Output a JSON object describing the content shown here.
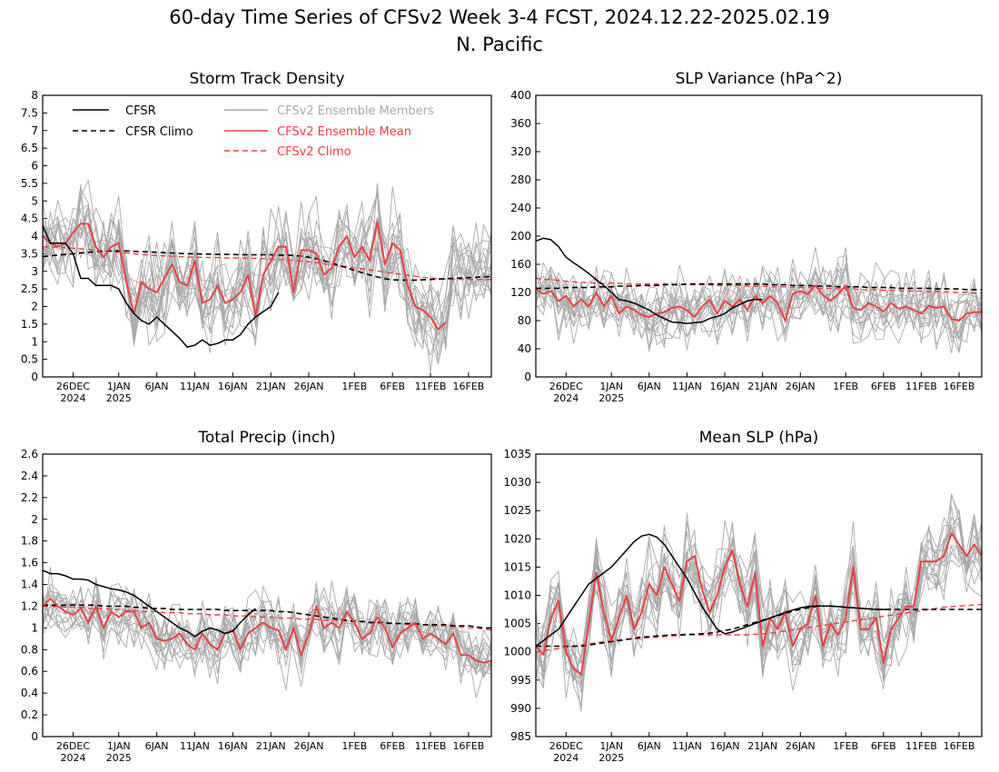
{
  "title_line1": "60-day Time Series of CFSv2 Week 3-4 FCST, 2024.12.22-2025.02.19",
  "title_line2": "N. Pacific",
  "x_ticks": [
    {
      "day": 4,
      "l1": "26DEC",
      "l2": "2024"
    },
    {
      "day": 10,
      "l1": "1JAN",
      "l2": "2025"
    },
    {
      "day": 15,
      "l1": "6JAN",
      "l2": ""
    },
    {
      "day": 20,
      "l1": "11JAN",
      "l2": ""
    },
    {
      "day": 25,
      "l1": "16JAN",
      "l2": ""
    },
    {
      "day": 30,
      "l1": "21JAN",
      "l2": ""
    },
    {
      "day": 35,
      "l1": "26JAN",
      "l2": ""
    },
    {
      "day": 41,
      "l1": "1FEB",
      "l2": ""
    },
    {
      "day": 46,
      "l1": "6FEB",
      "l2": ""
    },
    {
      "day": 51,
      "l1": "11FEB",
      "l2": ""
    },
    {
      "day": 56,
      "l1": "16FEB",
      "l2": ""
    }
  ],
  "legend": {
    "cfsr": "CFSR",
    "cfsr_climo": "CFSR Climo",
    "members": "CFSv2 Ensemble Members",
    "ens_mean": "CFSv2 Ensemble Mean",
    "cfsv2_climo": "CFSv2 Climo"
  },
  "colors": {
    "cfsr": "#000000",
    "members": "#a9a9a9",
    "ens_mean": "#f04040",
    "cfsv2_climo": "#f04040"
  },
  "chart_data": [
    {
      "type": "line",
      "title": "Storm Track Density",
      "x": "day index 0-59, 2024-12-22 to 2025-02-19",
      "ylim": [
        0,
        8
      ],
      "yticks": [
        "0",
        "0.5",
        "1",
        "1.5",
        "2",
        "2.5",
        "3",
        "3.5",
        "4",
        "4.5",
        "5",
        "5.5",
        "6",
        "6.5",
        "7",
        "7.5",
        "8"
      ],
      "cfsr": [
        4.3,
        3.8,
        3.8,
        3.8,
        3.5,
        2.8,
        2.8,
        2.6,
        2.6,
        2.6,
        2.5,
        2.1,
        1.8,
        1.6,
        1.5,
        1.7,
        1.5,
        1.3,
        1.1,
        0.85,
        0.9,
        1.05,
        0.9,
        0.95,
        1.05,
        1.05,
        1.2,
        1.5,
        1.7,
        1.85,
        2.0,
        2.4
      ],
      "cfsr_climo": [
        3.42,
        3.44,
        3.46,
        3.48,
        3.5,
        3.52,
        3.54,
        3.56,
        3.57,
        3.58,
        3.58,
        3.58,
        3.57,
        3.56,
        3.55,
        3.54,
        3.53,
        3.52,
        3.51,
        3.5,
        3.5,
        3.49,
        3.49,
        3.48,
        3.48,
        3.48,
        3.47,
        3.47,
        3.47,
        3.47,
        3.47,
        3.46,
        3.46,
        3.45,
        3.43,
        3.4,
        3.36,
        3.3,
        3.24,
        3.17,
        3.1,
        3.03,
        2.96,
        2.9,
        2.84,
        2.79,
        2.76,
        2.75,
        2.75,
        2.75,
        2.76,
        2.77,
        2.78,
        2.79,
        2.8,
        2.81,
        2.82,
        2.83,
        2.84,
        2.85
      ],
      "ens_mean": [
        4.0,
        3.8,
        3.7,
        3.8,
        4.1,
        4.35,
        4.35,
        3.7,
        3.4,
        3.7,
        3.8,
        2.7,
        1.8,
        2.7,
        2.5,
        2.4,
        2.8,
        3.2,
        2.7,
        2.6,
        3.3,
        2.1,
        2.2,
        2.6,
        2.1,
        2.2,
        2.4,
        2.9,
        1.7,
        2.9,
        3.3,
        3.7,
        3.7,
        2.4,
        3.6,
        3.6,
        3.5,
        2.9,
        3.1,
        3.7,
        4.0,
        3.4,
        3.7,
        3.3,
        4.4,
        3.2,
        3.8,
        3.6,
        2.6,
        2.0,
        1.9,
        1.7,
        1.35,
        1.55,
        null,
        null,
        null,
        null,
        null,
        null
      ],
      "cfsv2_climo": [
        3.7,
        3.69,
        3.68,
        3.67,
        3.66,
        3.64,
        3.62,
        3.6,
        3.58,
        3.56,
        3.54,
        3.52,
        3.5,
        3.48,
        3.46,
        3.45,
        3.44,
        3.43,
        3.42,
        3.41,
        3.4,
        3.4,
        3.39,
        3.39,
        3.38,
        3.38,
        3.38,
        3.37,
        3.37,
        3.36,
        3.35,
        3.34,
        3.33,
        3.31,
        3.29,
        3.27,
        3.25,
        3.22,
        3.19,
        3.16,
        3.13,
        3.1,
        3.07,
        3.04,
        3.01,
        2.98,
        2.95,
        2.92,
        2.89,
        2.86,
        2.83,
        2.81,
        2.79,
        2.78,
        2.77,
        2.77,
        2.77,
        2.77,
        2.77,
        2.77
      ],
      "member_base": 3.1,
      "member_spread": 1.25
    },
    {
      "type": "line",
      "title": "SLP Variance (hPa^2)",
      "x": "day index 0-59",
      "ylim": [
        0,
        400
      ],
      "yticks": [
        "0",
        "40",
        "80",
        "120",
        "160",
        "200",
        "240",
        "280",
        "320",
        "360",
        "400"
      ],
      "cfsr": [
        193,
        197,
        195,
        185,
        170,
        162,
        155,
        147,
        138,
        130,
        120,
        110,
        108,
        105,
        100,
        95,
        88,
        83,
        78,
        77,
        76,
        77,
        78,
        83,
        86,
        90,
        98,
        103,
        108,
        110,
        110
      ],
      "cfsr_climo": [
        126,
        126,
        126,
        126,
        127,
        127,
        127,
        127,
        128,
        128,
        128,
        129,
        129,
        129,
        130,
        130,
        130,
        131,
        131,
        131,
        132,
        132,
        132,
        132,
        132,
        132,
        132,
        132,
        132,
        132,
        132,
        131,
        131,
        131,
        130,
        130,
        130,
        129,
        129,
        129,
        128,
        128,
        128,
        128,
        127,
        127,
        127,
        127,
        126,
        126,
        126,
        126,
        126,
        125,
        125,
        125,
        125,
        124,
        124,
        124
      ],
      "ens_mean": [
        125,
        118,
        122,
        108,
        115,
        100,
        110,
        100,
        120,
        100,
        115,
        90,
        100,
        95,
        88,
        85,
        90,
        92,
        98,
        100,
        95,
        85,
        100,
        110,
        90,
        108,
        100,
        110,
        95,
        115,
        105,
        115,
        105,
        80,
        118,
        122,
        118,
        130,
        116,
        108,
        118,
        130,
        98,
        95,
        105,
        100,
        93,
        105,
        97,
        100,
        95,
        90,
        101,
        98,
        100,
        82,
        80,
        90,
        92,
        92
      ],
      "cfsv2_climo": [
        140,
        139,
        138,
        137,
        136,
        135,
        134,
        134,
        133,
        133,
        133,
        133,
        132,
        132,
        132,
        132,
        132,
        132,
        132,
        132,
        131,
        131,
        131,
        131,
        130,
        130,
        130,
        130,
        129,
        129,
        129,
        128,
        128,
        128,
        127,
        127,
        127,
        126,
        126,
        126,
        125,
        125,
        125,
        124,
        124,
        124,
        123,
        123,
        123,
        122,
        122,
        122,
        121,
        121,
        121,
        120,
        120,
        120,
        119,
        119
      ],
      "member_base": 110,
      "member_spread": 45
    },
    {
      "type": "line",
      "title": "Total Precip (inch)",
      "x": "day index 0-59",
      "ylim": [
        0,
        2.6
      ],
      "yticks": [
        "0",
        "0.2",
        "0.4",
        "0.6",
        "0.8",
        "1",
        "1.2",
        "1.4",
        "1.6",
        "1.8",
        "2",
        "2.2",
        "2.4",
        "2.6"
      ],
      "cfsr": [
        1.53,
        1.5,
        1.5,
        1.48,
        1.45,
        1.45,
        1.44,
        1.4,
        1.38,
        1.36,
        1.35,
        1.33,
        1.3,
        1.25,
        1.2,
        1.15,
        1.1,
        1.05,
        1.0,
        0.97,
        0.92,
        0.97,
        1.0,
        0.98,
        0.95,
        0.97,
        1.05,
        1.12,
        1.18
      ],
      "cfsr_climo": [
        1.21,
        1.21,
        1.21,
        1.21,
        1.21,
        1.21,
        1.21,
        1.21,
        1.2,
        1.2,
        1.2,
        1.2,
        1.19,
        1.19,
        1.18,
        1.18,
        1.18,
        1.17,
        1.17,
        1.17,
        1.17,
        1.17,
        1.17,
        1.17,
        1.16,
        1.16,
        1.16,
        1.16,
        1.16,
        1.16,
        1.16,
        1.15,
        1.15,
        1.14,
        1.13,
        1.12,
        1.11,
        1.1,
        1.09,
        1.08,
        1.07,
        1.06,
        1.06,
        1.05,
        1.05,
        1.05,
        1.04,
        1.04,
        1.04,
        1.04,
        1.03,
        1.03,
        1.03,
        1.03,
        1.02,
        1.02,
        1.02,
        1.01,
        1.0,
        1.0
      ],
      "ens_mean": [
        1.2,
        1.27,
        1.2,
        1.15,
        1.12,
        1.18,
        1.05,
        1.2,
        1.0,
        1.15,
        1.1,
        1.15,
        1.15,
        1.0,
        1.05,
        0.9,
        0.88,
        0.9,
        0.95,
        0.85,
        0.8,
        0.95,
        0.85,
        0.8,
        0.95,
        0.98,
        0.8,
        0.95,
        1.0,
        1.05,
        1.0,
        0.98,
        0.8,
        1.0,
        0.75,
        0.95,
        1.2,
        1.0,
        1.05,
        1.0,
        1.15,
        1.05,
        0.9,
        0.95,
        1.1,
        1.0,
        0.82,
        0.95,
        1.0,
        1.05,
        0.9,
        0.95,
        0.9,
        0.85,
        0.95,
        0.75,
        0.75,
        0.7,
        0.68,
        0.7
      ],
      "cfsv2_climo": [
        1.2,
        1.2,
        1.2,
        1.19,
        1.19,
        1.19,
        1.18,
        1.18,
        1.18,
        1.17,
        1.17,
        1.16,
        1.16,
        1.15,
        1.15,
        1.15,
        1.14,
        1.14,
        1.14,
        1.13,
        1.13,
        1.13,
        1.12,
        1.12,
        1.12,
        1.11,
        1.11,
        1.11,
        1.1,
        1.1,
        1.1,
        1.09,
        1.09,
        1.09,
        1.08,
        1.08,
        1.08,
        1.07,
        1.07,
        1.07,
        1.06,
        1.06,
        1.06,
        1.05,
        1.05,
        1.04,
        1.04,
        1.04,
        1.03,
        1.03,
        1.03,
        1.02,
        1.02,
        1.02,
        1.01,
        1.01,
        1.0,
        1.0,
        0.99,
        0.98
      ],
      "member_base": 1.0,
      "member_spread": 0.27
    },
    {
      "type": "line",
      "title": "Mean SLP (hPa)",
      "x": "day index 0-59",
      "ylim": [
        985,
        1035
      ],
      "yticks": [
        "985",
        "990",
        "995",
        "1000",
        "1005",
        "1010",
        "1015",
        "1020",
        "1025",
        "1030",
        "1035"
      ],
      "cfsr": [
        1001,
        1002,
        1003,
        1004,
        1006,
        1008,
        1010,
        1012,
        1013,
        1014,
        1015,
        1016.5,
        1018,
        1019.5,
        1020.5,
        1020.8,
        1020.3,
        1019,
        1017,
        1015,
        1013,
        1010.5,
        1008,
        1006,
        1004,
        1003.2,
        1003.5,
        1004,
        1004.5,
        1005,
        1005.5,
        1006,
        1006.5,
        1007,
        1007.4,
        1007.8,
        1008,
        1008.1,
        1008.1,
        1008.1,
        1008,
        1007.9,
        1007.8,
        1007.7,
        1007.6,
        1007.5,
        1007.5,
        1007.5
      ],
      "cfsr_climo": [
        1001,
        1001,
        1001,
        1001,
        1001,
        1001,
        1001,
        1001.2,
        1001.4,
        1001.6,
        1001.8,
        1002,
        1002.2,
        1002.4,
        1002.6,
        1002.7,
        1002.8,
        1002.9,
        1003,
        1003,
        1003.1,
        1003.1,
        1003.2,
        1003.3,
        1003.5,
        1003.8,
        1004,
        1004.4,
        1004.8,
        1005.2,
        1005.6,
        1006,
        1006.4,
        1006.8,
        1007.2,
        1007.5,
        1007.8,
        1008,
        1008.1,
        1008.1,
        1008,
        1007.9,
        1007.8,
        1007.7,
        1007.6,
        1007.5,
        1007.5,
        1007.5,
        1007.5,
        1007.5,
        1007.5,
        1007.5,
        1007.5,
        1007.5,
        1007.5,
        1007.5,
        1007.5,
        1007.5,
        1007.5,
        1007.5
      ],
      "ens_mean": [
        1001,
        999.5,
        1006,
        1009,
        1000,
        997,
        996,
        1005,
        1014,
        1007,
        1002,
        1006,
        1010,
        1004,
        1007,
        1012,
        1010,
        1015,
        1012,
        1009,
        1016,
        1017,
        1011,
        1007,
        1010,
        1015,
        1018,
        1012,
        1008,
        1014,
        1001,
        1006,
        1004,
        1007,
        1001,
        1004,
        1005,
        1010,
        1001,
        1005,
        1003,
        1006,
        1015,
        1004,
        1004,
        1006,
        998,
        1004,
        1006,
        1008,
        1008,
        1016,
        1016,
        1016,
        1017,
        1021,
        1019,
        1017,
        1019,
        1017
      ],
      "cfsv2_climo": [
        1000,
        1000.2,
        1000.4,
        1000.6,
        1000.8,
        1001,
        1001.2,
        1001.4,
        1001.6,
        1001.8,
        1002,
        1002.1,
        1002.2,
        1002.3,
        1002.4,
        1002.5,
        1002.6,
        1002.7,
        1002.8,
        1002.9,
        1003,
        1003,
        1003,
        1003,
        1003,
        1003,
        1003,
        1003,
        1003,
        1003.1,
        1003.2,
        1003.3,
        1003.5,
        1003.7,
        1003.9,
        1004.1,
        1004.3,
        1004.5,
        1004.7,
        1004.9,
        1005.1,
        1005.3,
        1005.5,
        1005.7,
        1005.9,
        1006.1,
        1006.3,
        1006.5,
        1006.7,
        1006.9,
        1007.1,
        1007.3,
        1007.5,
        1007.7,
        1007.9,
        1008,
        1008.1,
        1008.2,
        1008.3,
        1008.4
      ],
      "member_base": 1007,
      "member_spread": 7
    }
  ]
}
